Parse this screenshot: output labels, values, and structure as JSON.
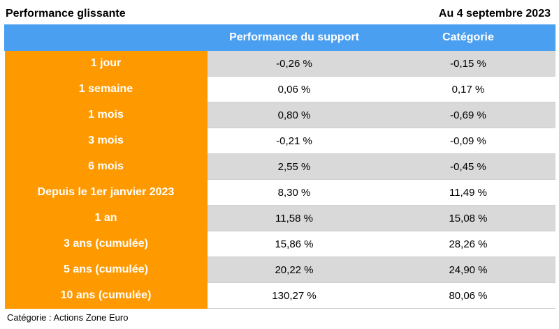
{
  "header": {
    "title": "Performance glissante",
    "date": "Au 4 septembre 2023"
  },
  "table": {
    "columns": [
      "",
      "Performance du support",
      "Catégorie"
    ],
    "rows": [
      {
        "period": "1 jour",
        "fund": "-0,26 %",
        "category": "-0,15 %"
      },
      {
        "period": "1 semaine",
        "fund": "0,06 %",
        "category": "0,17 %"
      },
      {
        "period": "1 mois",
        "fund": "0,80 %",
        "category": "-0,69 %"
      },
      {
        "period": "3 mois",
        "fund": "-0,21 %",
        "category": "-0,09 %"
      },
      {
        "period": "6 mois",
        "fund": "2,55 %",
        "category": "-0,45 %"
      },
      {
        "period": "Depuis le 1er janvier 2023",
        "fund": "8,30 %",
        "category": "11,49 %"
      },
      {
        "period": "1 an",
        "fund": "11,58 %",
        "category": "15,08 %"
      },
      {
        "period": "3 ans (cumulée)",
        "fund": "15,86 %",
        "category": "28,26 %"
      },
      {
        "period": "5 ans (cumulée)",
        "fund": "20,22 %",
        "category": "24,90 %"
      },
      {
        "period": "10 ans (cumulée)",
        "fund": "130,27 %",
        "category": "80,06 %"
      }
    ]
  },
  "footnote": "Catégorie : Actions Zone Euro",
  "colors": {
    "header_blue": "#4a9ff0",
    "period_orange": "#ff9900",
    "row_gray": "#d9d9d9"
  }
}
